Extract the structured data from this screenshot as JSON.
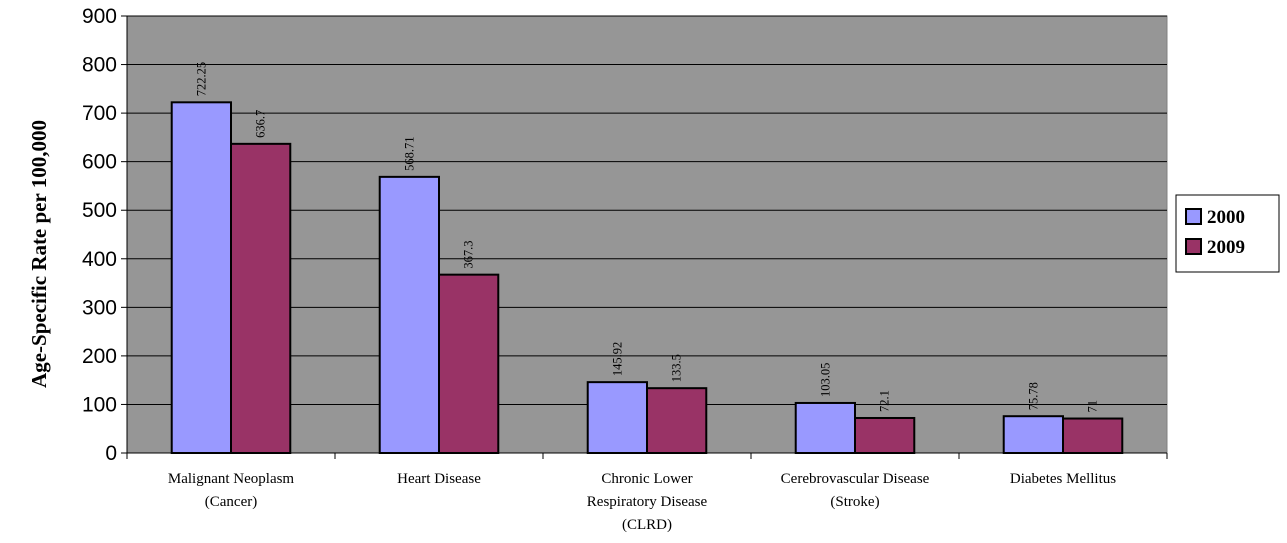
{
  "chart_data": {
    "type": "bar",
    "title": "",
    "xlabel": "",
    "ylabel": "Age-Specific Rate per 100,000",
    "ylim": [
      0,
      900
    ],
    "yticks": [
      0,
      100,
      200,
      300,
      400,
      500,
      600,
      700,
      800,
      900
    ],
    "grid": true,
    "legend_position": "right",
    "plot_background": "#969696",
    "categories": [
      [
        "Malignant Neoplasm",
        "(Cancer)"
      ],
      [
        "Heart Disease"
      ],
      [
        "Chronic Lower",
        "Respiratory Disease",
        "(CLRD)"
      ],
      [
        "Cerebrovascular Disease",
        "(Stroke)"
      ],
      [
        "Diabetes Mellitus"
      ]
    ],
    "series": [
      {
        "name": "2000",
        "color": "#9999ff",
        "values": [
          722.25,
          568.71,
          145.92,
          103.05,
          75.78
        ],
        "labels": [
          "722.25",
          "568.71",
          "145.92",
          "103.05",
          "75.78"
        ]
      },
      {
        "name": "2009",
        "color": "#993366",
        "values": [
          636.7,
          367.3,
          133.5,
          72.1,
          71
        ],
        "labels": [
          "636.7",
          "367.3",
          "133.5",
          "72.1",
          "71"
        ]
      }
    ]
  }
}
